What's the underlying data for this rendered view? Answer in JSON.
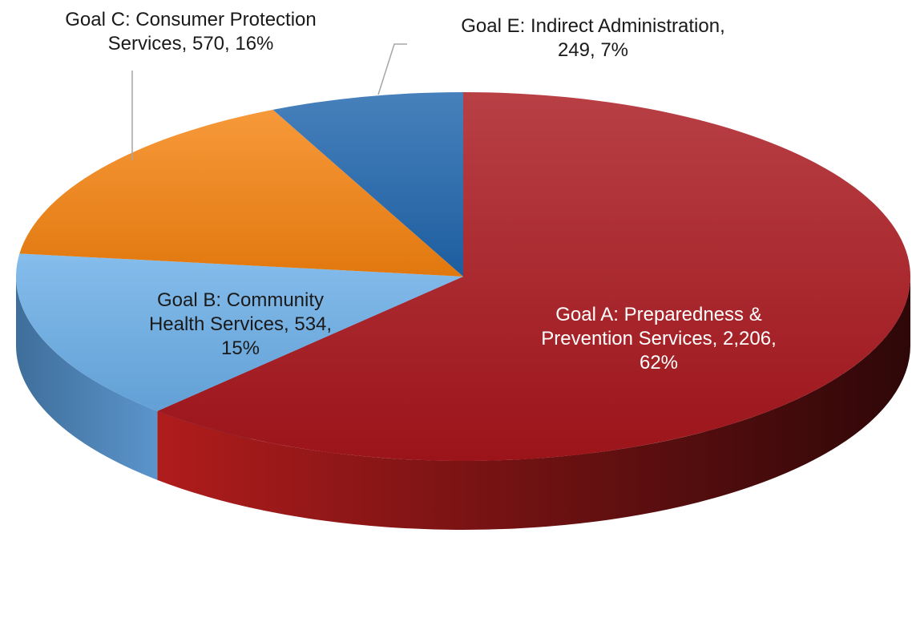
{
  "chart_data": {
    "type": "pie",
    "style": "3d",
    "title": "",
    "slices": [
      {
        "label_lines": [
          "Goal A: Preparedness &",
          "Prevention Services, 2,206,",
          "62%"
        ],
        "name": "Goal A: Preparedness & Prevention Services",
        "value": 2206,
        "percent": 62,
        "color": "#a8161c"
      },
      {
        "label_lines": [
          "Goal B: Community",
          "Health Services, 534,",
          "15%"
        ],
        "name": "Goal B: Community Health Services",
        "value": 534,
        "percent": 15,
        "color": "#6aaee8"
      },
      {
        "label_lines": [
          "Goal C: Consumer Protection",
          "Services, 570, 16%"
        ],
        "name": "Goal C: Consumer Protection Services",
        "value": 570,
        "percent": 16,
        "color": "#f5820f"
      },
      {
        "label_lines": [
          "Goal E: Indirect Administration,",
          "249, 7%"
        ],
        "name": "Goal E: Indirect Administration",
        "value": 249,
        "percent": 7,
        "color": "#1f65ad"
      }
    ],
    "legend": "none",
    "data_labels": "category, value, percentage"
  }
}
